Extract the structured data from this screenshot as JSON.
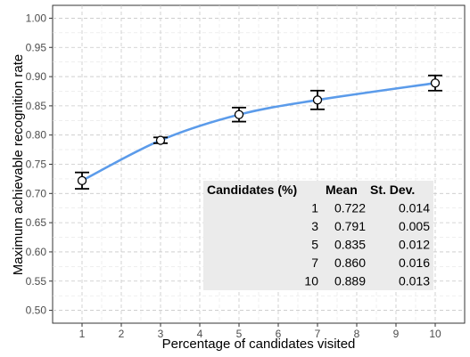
{
  "chart_data": {
    "type": "line",
    "xlabel": "Percentage of candidates visited",
    "ylabel": "Maximum achievable recognition rate",
    "xlim": [
      0.25,
      10.75
    ],
    "ylim": [
      0.478,
      1.022
    ],
    "x_ticks": [
      1,
      2,
      3,
      4,
      5,
      6,
      7,
      8,
      9,
      10
    ],
    "y_ticks": [
      0.5,
      0.55,
      0.6,
      0.65,
      0.7,
      0.75,
      0.8,
      0.85,
      0.9,
      0.95,
      1.0
    ],
    "x_tick_labels": [
      "1",
      "2",
      "3",
      "4",
      "5",
      "6",
      "7",
      "8",
      "9",
      "10"
    ],
    "y_tick_labels": [
      "0.50",
      "0.55",
      "0.60",
      "0.65",
      "0.70",
      "0.75",
      "0.80",
      "0.85",
      "0.90",
      "0.95",
      "1.00"
    ],
    "grid": true,
    "line_color": "#5b9bea",
    "series": [
      {
        "x": [
          1,
          3,
          5,
          7,
          10
        ],
        "y": [
          0.722,
          0.791,
          0.835,
          0.86,
          0.889
        ],
        "error": [
          0.014,
          0.005,
          0.012,
          0.016,
          0.013
        ]
      }
    ],
    "table": {
      "headers": [
        "Candidates (%)",
        "Mean",
        "St. Dev."
      ],
      "rows": [
        [
          "1",
          "0.722",
          "0.014"
        ],
        [
          "3",
          "0.791",
          "0.005"
        ],
        [
          "5",
          "0.835",
          "0.012"
        ],
        [
          "7",
          "0.860",
          "0.016"
        ],
        [
          "10",
          "0.889",
          "0.013"
        ]
      ]
    }
  }
}
